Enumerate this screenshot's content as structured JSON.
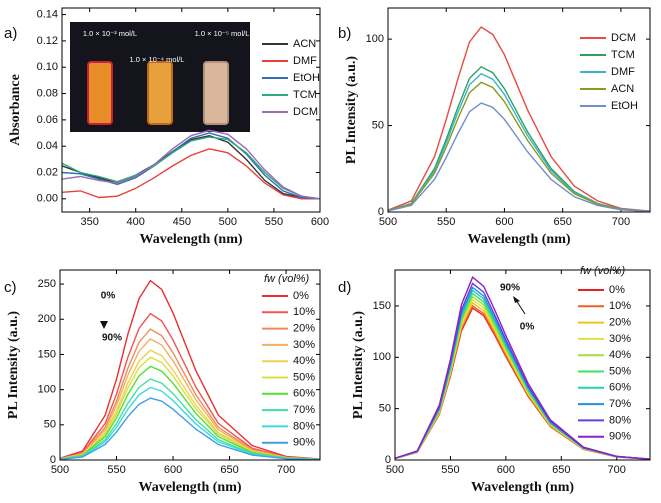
{
  "chart_data": [
    {
      "type": "line",
      "panel_label": "a)",
      "xlabel": "Wavelength (nm)",
      "ylabel": "Absorbance",
      "x": [
        320,
        340,
        360,
        380,
        400,
        420,
        440,
        460,
        480,
        500,
        520,
        540,
        560,
        580,
        600
      ],
      "xlim": [
        320,
        600
      ],
      "xticks": [
        350,
        400,
        450,
        500,
        550,
        600
      ],
      "ylim": [
        -0.01,
        0.145
      ],
      "yticks": [
        {
          "value": 0,
          "label": "0.00"
        },
        {
          "value": 0.02,
          "label": "0.02"
        },
        {
          "value": 0.04,
          "label": "0.04"
        },
        {
          "value": 0.06,
          "label": "0.06"
        },
        {
          "value": 0.08,
          "label": "0.08"
        },
        {
          "value": 0.1,
          "label": "0.10"
        },
        {
          "value": 0.12,
          "label": "0.12"
        },
        {
          "value": 0.14,
          "label": "0.14"
        }
      ],
      "inset_labels": [
        "1.0 × 10⁻³ mol/L",
        "1.0 × 10⁻⁴ mol/L",
        "1.0 × 10⁻⁵ mol/L"
      ],
      "series": [
        {
          "name": "ACN",
          "color": "#333333",
          "values": [
            0.025,
            0.02,
            0.016,
            0.012,
            0.018,
            0.026,
            0.036,
            0.045,
            0.048,
            0.043,
            0.03,
            0.014,
            0.004,
            0.001,
            0
          ]
        },
        {
          "name": "DMF",
          "color": "#e8413c",
          "values": [
            0.005,
            0.006,
            0.001,
            0.002,
            0.008,
            0.016,
            0.025,
            0.033,
            0.038,
            0.035,
            0.025,
            0.012,
            0.003,
            0,
            0
          ]
        },
        {
          "name": "EtOH",
          "color": "#2f6fb5",
          "values": [
            0.02,
            0.019,
            0.015,
            0.011,
            0.016,
            0.025,
            0.036,
            0.046,
            0.05,
            0.046,
            0.034,
            0.018,
            0.006,
            0.001,
            0
          ]
        },
        {
          "name": "TCM",
          "color": "#2eaa7a",
          "values": [
            0.027,
            0.02,
            0.017,
            0.013,
            0.018,
            0.025,
            0.035,
            0.044,
            0.047,
            0.045,
            0.035,
            0.02,
            0.008,
            0.002,
            0
          ]
        },
        {
          "name": "DCM",
          "color": "#9b6bb3",
          "values": [
            0.015,
            0.017,
            0.014,
            0.012,
            0.017,
            0.026,
            0.038,
            0.048,
            0.052,
            0.049,
            0.038,
            0.022,
            0.009,
            0.002,
            0
          ]
        }
      ]
    },
    {
      "type": "line",
      "panel_label": "b)",
      "xlabel": "Wavelength (nm)",
      "ylabel": "PL Intensity (a.u.)",
      "x": [
        500,
        520,
        540,
        550,
        560,
        570,
        580,
        590,
        600,
        620,
        640,
        660,
        680,
        700,
        725
      ],
      "xlim": [
        500,
        725
      ],
      "xticks": [
        500,
        550,
        600,
        650,
        700
      ],
      "ylim": [
        0,
        118
      ],
      "yticks": [
        0,
        50,
        100
      ],
      "series": [
        {
          "name": "DCM",
          "color": "#e84a3f",
          "values": [
            1.1,
            6.4,
            32.1,
            53.5,
            77,
            98.4,
            107,
            102.7,
            91,
            58.9,
            32.1,
            15,
            6.4,
            2.1,
            0.5
          ]
        },
        {
          "name": "TCM",
          "color": "#2e9e62",
          "values": [
            0.8,
            5,
            25.2,
            42,
            60.5,
            77.3,
            84,
            80.6,
            71.4,
            46.2,
            25.2,
            11.8,
            5,
            1.7,
            0.4
          ]
        },
        {
          "name": "DMF",
          "color": "#3ab5c8",
          "values": [
            0.8,
            4.8,
            24,
            40,
            57.6,
            73.6,
            80,
            76.8,
            68,
            44,
            24,
            11.2,
            4.8,
            1.6,
            0.4
          ]
        },
        {
          "name": "ACN",
          "color": "#8a9a1e",
          "values": [
            0.8,
            4.5,
            22.5,
            37.5,
            54,
            69,
            75,
            72,
            63.8,
            41.3,
            22.5,
            10.5,
            4.5,
            1.5,
            0.4
          ]
        },
        {
          "name": "EtOH",
          "color": "#6f8ed0",
          "values": [
            0.6,
            3.8,
            18.9,
            31.5,
            45.4,
            58,
            63,
            60.5,
            53.6,
            34.7,
            18.9,
            8.8,
            3.8,
            1.3,
            0.3
          ]
        }
      ]
    },
    {
      "type": "line",
      "panel_label": "c)",
      "xlabel": "Wavelength (nm)",
      "ylabel": "PL Intensity (a.u.)",
      "legend_title": "fw (vol%)",
      "annotations": [
        "0%",
        "90%"
      ],
      "x": [
        500,
        520,
        540,
        550,
        560,
        570,
        580,
        590,
        600,
        620,
        640,
        670,
        700,
        730
      ],
      "xlim": [
        500,
        730
      ],
      "xticks": [
        500,
        550,
        600,
        650,
        700
      ],
      "ylim": [
        0,
        270
      ],
      "yticks": [
        0,
        50,
        100,
        150,
        200,
        250
      ],
      "series": [
        {
          "name": "0%",
          "color": "#e8302e",
          "values": [
            2.6,
            12.8,
            63.8,
            114.8,
            178.5,
            229.5,
            255,
            242.3,
            209.1,
            127.5,
            63.8,
            20.4,
            5.1,
            1.3
          ]
        },
        {
          "name": "10%",
          "color": "#f0554f",
          "values": [
            2.1,
            10.4,
            52,
            93.6,
            145.6,
            187.2,
            208,
            197.6,
            170.6,
            104,
            52,
            16.6,
            4.2,
            1
          ]
        },
        {
          "name": "20%",
          "color": "#f08a5d",
          "values": [
            1.9,
            9.3,
            46.5,
            83.7,
            130.2,
            167.4,
            186,
            176.7,
            152.5,
            93,
            46.5,
            14.9,
            3.7,
            0.9
          ]
        },
        {
          "name": "30%",
          "color": "#f0b060",
          "values": [
            1.7,
            8.6,
            43,
            77.4,
            120.4,
            154.8,
            172,
            163.4,
            141,
            86,
            43,
            13.8,
            3.4,
            0.9
          ]
        },
        {
          "name": "40%",
          "color": "#f0d050",
          "values": [
            1.6,
            7.8,
            39,
            70.2,
            109.2,
            140.4,
            156,
            148.2,
            127.9,
            78,
            39,
            12.5,
            3.1,
            0.8
          ]
        },
        {
          "name": "50%",
          "color": "#d8e040",
          "values": [
            1.5,
            7.3,
            36.5,
            65.7,
            102.2,
            131.4,
            146,
            138.7,
            119.7,
            73,
            36.5,
            11.7,
            2.9,
            0.7
          ]
        },
        {
          "name": "60%",
          "color": "#50e030",
          "values": [
            1.3,
            6.7,
            33.3,
            59.9,
            93.1,
            119.7,
            133,
            126.4,
            109.1,
            66.5,
            33.3,
            10.6,
            2.7,
            0.7
          ]
        },
        {
          "name": "70%",
          "color": "#40e0a0",
          "values": [
            1.2,
            5.8,
            28.8,
            51.8,
            80.5,
            103.5,
            115,
            109.3,
            94.3,
            57.5,
            28.8,
            9.2,
            2.3,
            0.6
          ]
        },
        {
          "name": "80%",
          "color": "#40d8e0",
          "values": [
            1,
            5.2,
            25.8,
            46.4,
            72.1,
            92.7,
            103,
            97.9,
            84.5,
            51.5,
            25.8,
            8.2,
            2.1,
            0.5
          ]
        },
        {
          "name": "90%",
          "color": "#40a0e0",
          "values": [
            0.9,
            4.4,
            22,
            39.6,
            61.6,
            79.2,
            88,
            83.6,
            72.2,
            44,
            22,
            7,
            1.8,
            0.4
          ]
        }
      ]
    },
    {
      "type": "line",
      "panel_label": "d)",
      "xlabel": "Wavelength (nm)",
      "ylabel": "PL Intensity (a.u.)",
      "legend_title": "fw (vol%)",
      "annotations": [
        "90%",
        "0%"
      ],
      "x": [
        500,
        520,
        540,
        550,
        560,
        570,
        580,
        590,
        600,
        620,
        640,
        670,
        700,
        730
      ],
      "xlim": [
        500,
        730
      ],
      "xticks": [
        500,
        550,
        600,
        650,
        700
      ],
      "ylim": [
        0,
        185
      ],
      "yticks": [
        0,
        50,
        100,
        150
      ],
      "series": [
        {
          "name": "0%",
          "color": "#e82020",
          "values": [
            1.5,
            7.4,
            44.4,
            81.4,
            125.8,
            148,
            140.6,
            121.4,
            100.6,
            62.2,
            32.6,
            10.4,
            3,
            0.7
          ]
        },
        {
          "name": "10%",
          "color": "#f06020",
          "values": [
            1.5,
            7.5,
            45,
            82.5,
            127.5,
            150,
            142.5,
            123,
            102,
            63,
            33,
            10.5,
            3,
            0.8
          ]
        },
        {
          "name": "20%",
          "color": "#f0c020",
          "values": [
            1.5,
            7.7,
            45.9,
            84.2,
            130.1,
            153,
            145.4,
            125.5,
            104,
            64.3,
            33.7,
            10.7,
            3.1,
            0.8
          ]
        },
        {
          "name": "30%",
          "color": "#e0e040",
          "values": [
            1.6,
            7.8,
            46.8,
            85.8,
            132.6,
            156,
            148.2,
            127.9,
            106.1,
            65.5,
            34.3,
            10.9,
            3.1,
            0.8
          ]
        },
        {
          "name": "40%",
          "color": "#a0e040",
          "values": [
            1.6,
            8,
            47.7,
            87.5,
            135.2,
            159,
            151,
            130.4,
            108.1,
            66.8,
            35,
            11.1,
            3.2,
            0.8
          ]
        },
        {
          "name": "50%",
          "color": "#40e060",
          "values": [
            1.6,
            8.1,
            48.6,
            89.1,
            137.7,
            162,
            153.9,
            132.8,
            110.2,
            68,
            35.6,
            11.3,
            3.2,
            0.8
          ]
        },
        {
          "name": "60%",
          "color": "#20d0c0",
          "values": [
            1.7,
            8.3,
            49.5,
            90.8,
            140.3,
            165,
            156.8,
            135.3,
            112.2,
            69.3,
            36.3,
            11.6,
            3.3,
            0.8
          ]
        },
        {
          "name": "70%",
          "color": "#2090e0",
          "values": [
            1.7,
            8.4,
            50.4,
            92.4,
            142.8,
            168,
            159.6,
            137.8,
            114.2,
            70.6,
            37,
            11.8,
            3.4,
            0.8
          ]
        },
        {
          "name": "80%",
          "color": "#6040e0",
          "values": [
            1.7,
            8.6,
            51.6,
            94.6,
            146.2,
            172,
            163.4,
            141,
            117,
            72.2,
            37.8,
            12,
            3.4,
            0.9
          ]
        },
        {
          "name": "90%",
          "color": "#9020c0",
          "values": [
            1.8,
            8.9,
            53.4,
            97.9,
            151.3,
            178,
            169.1,
            146,
            121,
            74.8,
            39.2,
            12.5,
            3.6,
            0.9
          ]
        }
      ]
    }
  ]
}
